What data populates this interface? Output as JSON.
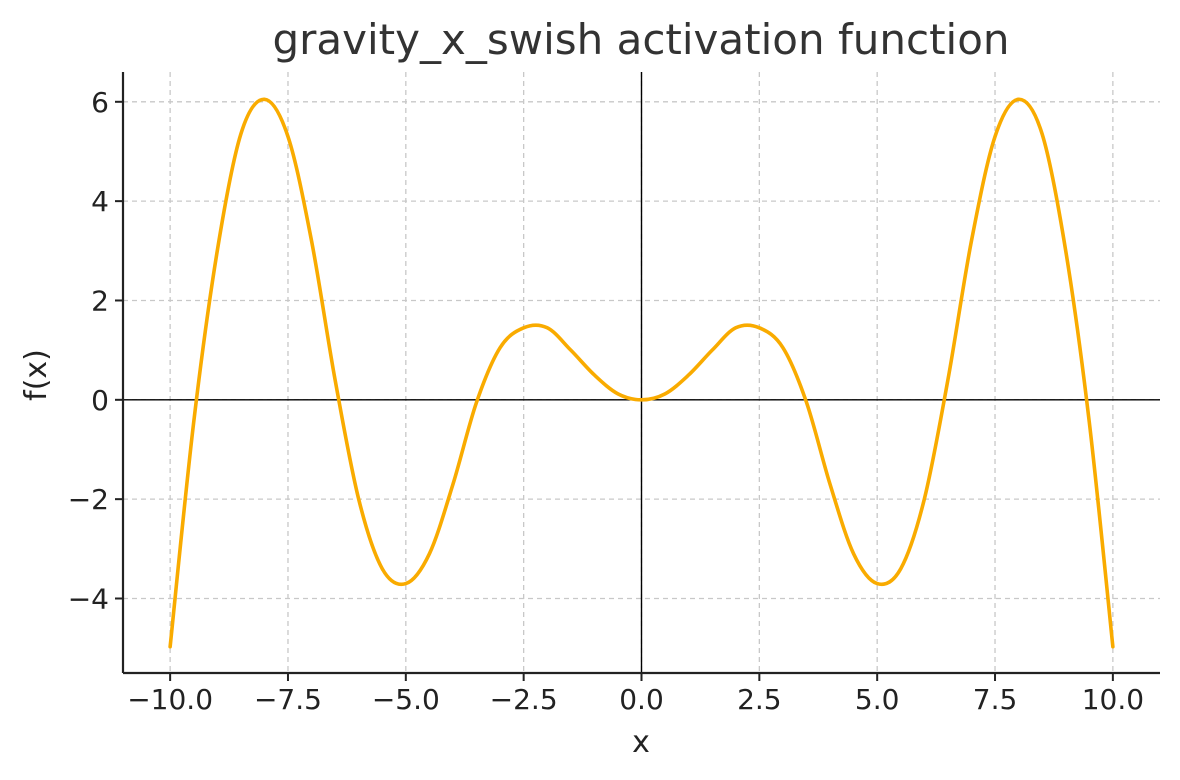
{
  "chart_data": {
    "type": "line",
    "title": "gravity_x_swish activation function",
    "xlabel": "x",
    "ylabel": "f(x)",
    "xlim": [
      -11.0,
      11.0
    ],
    "ylim": [
      -5.5,
      6.6
    ],
    "x_ticks": [
      -10.0,
      -7.5,
      -5.0,
      -2.5,
      0.0,
      2.5,
      5.0,
      7.5,
      10.0
    ],
    "x_tick_labels": [
      "−10.0",
      "−7.5",
      "−5.0",
      "−2.5",
      "0.0",
      "2.5",
      "5.0",
      "7.5",
      "10.0"
    ],
    "y_ticks": [
      -4,
      -2,
      0,
      2,
      4,
      6
    ],
    "y_tick_labels": [
      "−4",
      "−2",
      "0",
      "2",
      "4",
      "6"
    ],
    "grid": true,
    "zero_lines": true,
    "series": [
      {
        "color": "#F9AB00",
        "x": [
          -10.0,
          -9.5,
          -9.0,
          -8.5,
          -8.0,
          -7.5,
          -7.0,
          -6.5,
          -6.0,
          -5.5,
          -5.0,
          -4.5,
          -4.0,
          -3.5,
          -3.0,
          -2.5,
          -2.0,
          -1.5,
          -1.0,
          -0.5,
          0.0,
          0.5,
          1.0,
          1.5,
          2.0,
          2.5,
          3.0,
          3.5,
          4.0,
          4.5,
          5.0,
          5.5,
          6.0,
          6.5,
          7.0,
          7.5,
          8.0,
          8.5,
          9.0,
          9.5,
          10.0
        ],
        "y": [
          -4.97,
          -0.45,
          3.0,
          5.35,
          6.05,
          5.3,
          3.2,
          0.4,
          -2.0,
          -3.4,
          -3.7,
          -3.1,
          -1.7,
          -0.05,
          1.05,
          1.45,
          1.45,
          1.0,
          0.5,
          0.12,
          0.0,
          0.12,
          0.5,
          1.0,
          1.45,
          1.45,
          1.05,
          -0.05,
          -1.7,
          -3.1,
          -3.7,
          -3.4,
          -2.0,
          0.4,
          3.2,
          5.3,
          6.05,
          5.35,
          3.0,
          -0.45,
          -4.97
        ]
      }
    ]
  }
}
